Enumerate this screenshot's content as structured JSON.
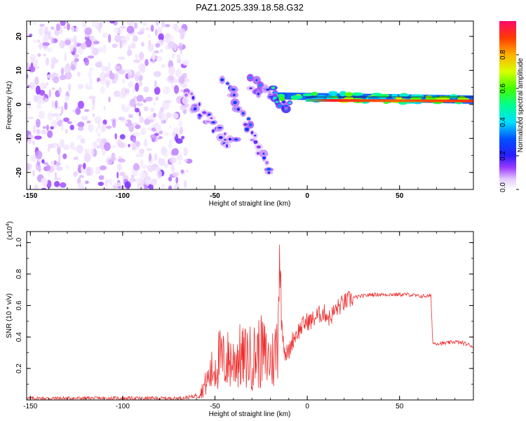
{
  "title": "PAZ1.2025.339.18.58.G32",
  "colors": {
    "snr_line": "#ee3030",
    "axis": "#000000"
  },
  "chart_data": [
    {
      "type": "heatmap",
      "name": "spectrogram",
      "xlabel": "Height of straight line (km)",
      "ylabel": "Frequency (Hz)",
      "xlim": [
        -152,
        90
      ],
      "ylim": [
        -25,
        24.5
      ],
      "xticks": [
        -150,
        -100,
        -50,
        0,
        50
      ],
      "yticks": [
        20,
        10,
        0,
        -10,
        -20
      ],
      "colorbar": {
        "label": "Normalized spectral amplitude",
        "range": [
          0,
          1
        ],
        "ticks": [
          "0.0",
          "0.2",
          "0.4",
          "0.6",
          "0.8"
        ],
        "tick_values": [
          0,
          0.2,
          0.4,
          0.6,
          0.8
        ]
      },
      "features": [
        {
          "desc": "noise region",
          "x_range": [
            -152,
            -64
          ],
          "freq_range": [
            -25,
            24.5
          ],
          "amplitude": 0.08
        },
        {
          "desc": "diagonal streak",
          "x_range": [
            -65,
            -40
          ],
          "freq_center": [
            2,
            -12
          ],
          "amplitude": 0.12
        },
        {
          "desc": "diagonal streak",
          "x_range": [
            -45,
            -20
          ],
          "freq_center": [
            8,
            -20
          ],
          "amplitude": 0.12
        },
        {
          "desc": "converging blob",
          "x_range": [
            -30,
            -10
          ],
          "freq_center": [
            6,
            0
          ],
          "amplitude": 0.2
        },
        {
          "desc": "main carrier",
          "x_range": [
            -16,
            90
          ],
          "freq_center": [
            2.5,
            1.2
          ],
          "amplitude": 0.85
        }
      ]
    },
    {
      "type": "line",
      "name": "snr",
      "xlabel": "Height of straight line (km)",
      "ylabel": "SNR (10 * v/v)",
      "multiplier": "(x10",
      "multiplier_exp": "4",
      "multiplier_close": ")",
      "xlim": [
        -152,
        90
      ],
      "ylim": [
        0,
        1.07
      ],
      "xticks": [
        -150,
        -100,
        -50,
        0,
        50
      ],
      "yticks": [
        0.2,
        0.4,
        0.6,
        0.8,
        1.0
      ],
      "ytick_labels": [
        "0.2",
        "0.4",
        "0.6",
        "0.8",
        "1.0"
      ],
      "series": [
        {
          "name": "SNR",
          "x": [
            -152,
            -130,
            -110,
            -90,
            -70,
            -62,
            -58,
            -55,
            -52,
            -50,
            -48,
            -45,
            -42,
            -40,
            -38,
            -35,
            -32,
            -30,
            -28,
            -26,
            -24,
            -22,
            -20,
            -18,
            -16,
            -15,
            -14,
            -12,
            -10,
            -8,
            -6,
            -4,
            -2,
            0,
            2,
            4,
            6,
            8,
            10,
            12,
            14,
            16,
            18,
            20,
            22,
            25,
            30,
            35,
            40,
            45,
            50,
            55,
            60,
            65,
            67,
            68,
            70,
            75,
            80,
            85,
            90
          ],
          "y": [
            0.01,
            0.01,
            0.01,
            0.01,
            0.01,
            0.02,
            0.05,
            0.12,
            0.2,
            0.25,
            0.3,
            0.28,
            0.3,
            0.28,
            0.33,
            0.3,
            0.32,
            0.3,
            0.33,
            0.35,
            0.35,
            0.3,
            0.3,
            0.3,
            0.45,
            1.05,
            0.5,
            0.3,
            0.3,
            0.38,
            0.42,
            0.45,
            0.48,
            0.5,
            0.5,
            0.52,
            0.54,
            0.55,
            0.55,
            0.52,
            0.55,
            0.58,
            0.6,
            0.62,
            0.63,
            0.65,
            0.66,
            0.67,
            0.67,
            0.67,
            0.67,
            0.67,
            0.66,
            0.66,
            0.66,
            0.36,
            0.36,
            0.36,
            0.37,
            0.36,
            0.34
          ]
        }
      ]
    }
  ]
}
